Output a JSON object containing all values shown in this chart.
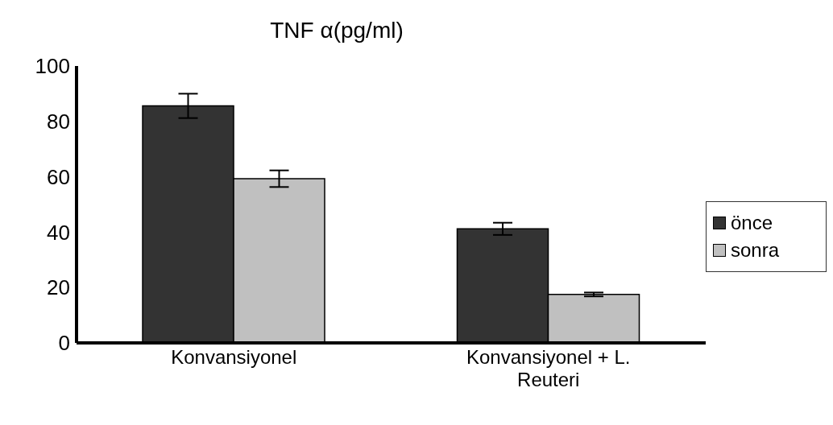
{
  "chart_data": {
    "type": "bar",
    "title": "TNF α(pg/ml)",
    "categories": [
      "Konvansiyonel",
      "Konvansiyonel + L. Reuteri"
    ],
    "series": [
      {
        "name": "önce",
        "color": "#333333",
        "values": [
          85.6,
          41.2
        ],
        "errors": [
          4.4,
          2.2
        ]
      },
      {
        "name": "sonra",
        "color": "#c0c0c0",
        "values": [
          59.3,
          17.5
        ],
        "errors": [
          3,
          0.7
        ]
      }
    ],
    "ylim": [
      0,
      100
    ],
    "yticks": [
      0,
      20,
      40,
      60,
      80,
      100
    ],
    "grid": false,
    "legend": "right"
  }
}
